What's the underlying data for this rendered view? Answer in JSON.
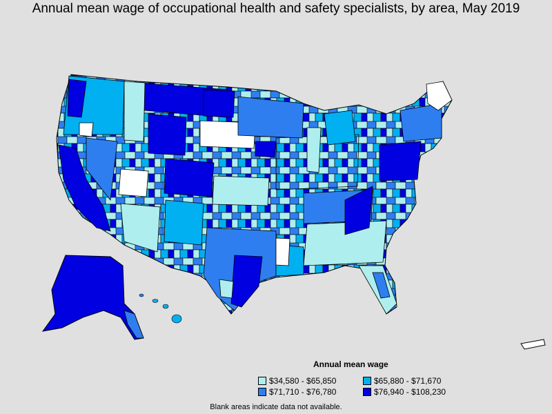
{
  "title": "Annual mean wage of occupational health and safety specialists, by area, May 2019",
  "legend": {
    "title": "Annual mean wage",
    "items": [
      {
        "label": "$34,580 - $65,850",
        "color": "#aeeeee"
      },
      {
        "label": "$65,880 - $71,670",
        "color": "#00b0f0"
      },
      {
        "label": "$71,710 - $76,780",
        "color": "#2e7ef0"
      },
      {
        "label": "$76,940 - $108,230",
        "color": "#0000e0"
      }
    ]
  },
  "colors": {
    "background": "#e0e0e0",
    "no_data": "#ffffff",
    "border": "#000000"
  },
  "note": "Blank areas indicate data not available."
}
